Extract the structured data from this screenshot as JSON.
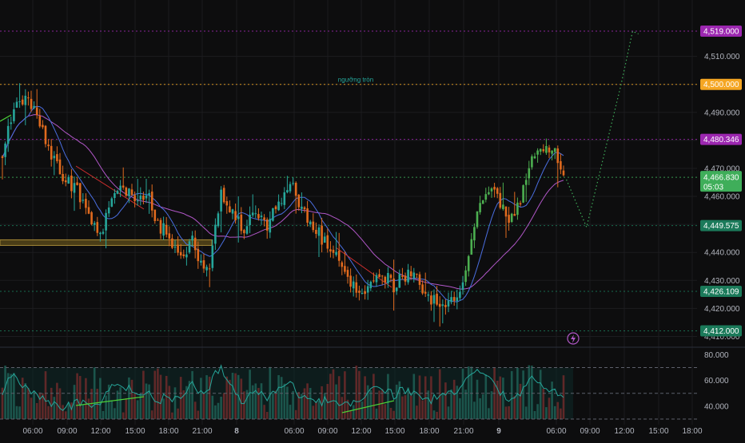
{
  "chart_data": [
    {
      "type": "candlestick",
      "pane": "price",
      "y_range": [
        4407,
        4525
      ],
      "y_ticks": [
        4410,
        4420,
        4430,
        4440,
        4450,
        4460,
        4470,
        4480,
        4490,
        4500,
        4510
      ],
      "y_tick_labels": [
        "4,410.000",
        "4,420.000",
        "4,430.000",
        "4,440.000",
        "4,450.000",
        "4,460.000",
        "4,470.000",
        "4,480.000",
        "4,490.000",
        "4,500.000",
        "4,510.000"
      ],
      "x_labels": [
        "06:00",
        "09:00",
        "12:00",
        "15:00",
        "18:00",
        "21:00",
        "8",
        "06:00",
        "09:00",
        "12:00",
        "15:00",
        "18:00",
        "21:00",
        "9",
        "06:00",
        "09:00",
        "12:00",
        "15:00",
        "18:00"
      ],
      "candle_color_up": "#26a69a",
      "candle_color_up_bright": "#4caf50",
      "candle_color_down": "#e06a1e",
      "ma_fast_color": "#4a6ee0",
      "ma_slow_color": "#b057c7",
      "path_waypoints": [
        [
          0,
          4475
        ],
        [
          4,
          4492
        ],
        [
          8,
          4496
        ],
        [
          12,
          4488
        ],
        [
          16,
          4478
        ],
        [
          20,
          4468
        ],
        [
          26,
          4462
        ],
        [
          30,
          4452
        ],
        [
          34,
          4446
        ],
        [
          38,
          4458
        ],
        [
          42,
          4464
        ],
        [
          46,
          4458
        ],
        [
          50,
          4462
        ],
        [
          54,
          4450
        ],
        [
          58,
          4446
        ],
        [
          62,
          4438
        ],
        [
          66,
          4445
        ],
        [
          70,
          4432
        ],
        [
          72,
          4436
        ],
        [
          76,
          4460
        ],
        [
          80,
          4454
        ],
        [
          84,
          4448
        ],
        [
          88,
          4456
        ],
        [
          92,
          4450
        ],
        [
          96,
          4458
        ],
        [
          100,
          4465
        ],
        [
          104,
          4456
        ],
        [
          108,
          4449
        ],
        [
          112,
          4444
        ],
        [
          116,
          4438
        ],
        [
          120,
          4432
        ],
        [
          124,
          4425
        ],
        [
          128,
          4430
        ],
        [
          132,
          4433
        ],
        [
          136,
          4428
        ],
        [
          140,
          4432
        ],
        [
          144,
          4430
        ],
        [
          148,
          4425
        ],
        [
          152,
          4420
        ],
        [
          156,
          4422
        ],
        [
          160,
          4428
        ],
        [
          164,
          4450
        ],
        [
          168,
          4462
        ],
        [
          172,
          4460
        ],
        [
          176,
          4451
        ],
        [
          180,
          4458
        ],
        [
          184,
          4474
        ],
        [
          188,
          4478
        ],
        [
          192,
          4476
        ],
        [
          195,
          4467
        ]
      ],
      "price_levels": [
        {
          "price": 4519.0,
          "label": "4,519.000",
          "color": "#9c27b0"
        },
        {
          "price": 4500.0,
          "label": "4,500.000",
          "color": "#f5a623"
        },
        {
          "price": 4480.346,
          "label": "4,480.346",
          "color": "#9c27b0"
        },
        {
          "price": 4466.83,
          "label": "4,466.830",
          "color": "#3fae5a",
          "countdown": "05:03"
        },
        {
          "price": 4449.575,
          "label": "4,449.575",
          "color": "#1b7a5a"
        },
        {
          "price": 4426.109,
          "label": "4,426.109",
          "color": "#1b7a5a"
        },
        {
          "price": 4412.0,
          "label": "4,412.000",
          "color": "#1b7a5a"
        }
      ],
      "annotation": {
        "text": "ngưỡng tròn",
        "price": 4500.0
      },
      "support_zone": [
        4442.5,
        4444.5
      ],
      "projection": [
        [
          196,
          4466
        ],
        [
          203,
          4449
        ],
        [
          215,
          4500
        ],
        [
          219,
          4519
        ],
        [
          221,
          4518
        ]
      ]
    },
    {
      "type": "line",
      "pane": "oscillator",
      "y_range": [
        30,
        84
      ],
      "y_ticks": [
        40,
        60,
        80
      ],
      "y_tick_labels": [
        "40.000",
        "60.000",
        "80.000"
      ],
      "levels": [
        70,
        50,
        30
      ],
      "line_color": "#26a69a",
      "volume_up_color": "#1e5f55",
      "volume_down_color": "#6e2a2a"
    }
  ]
}
